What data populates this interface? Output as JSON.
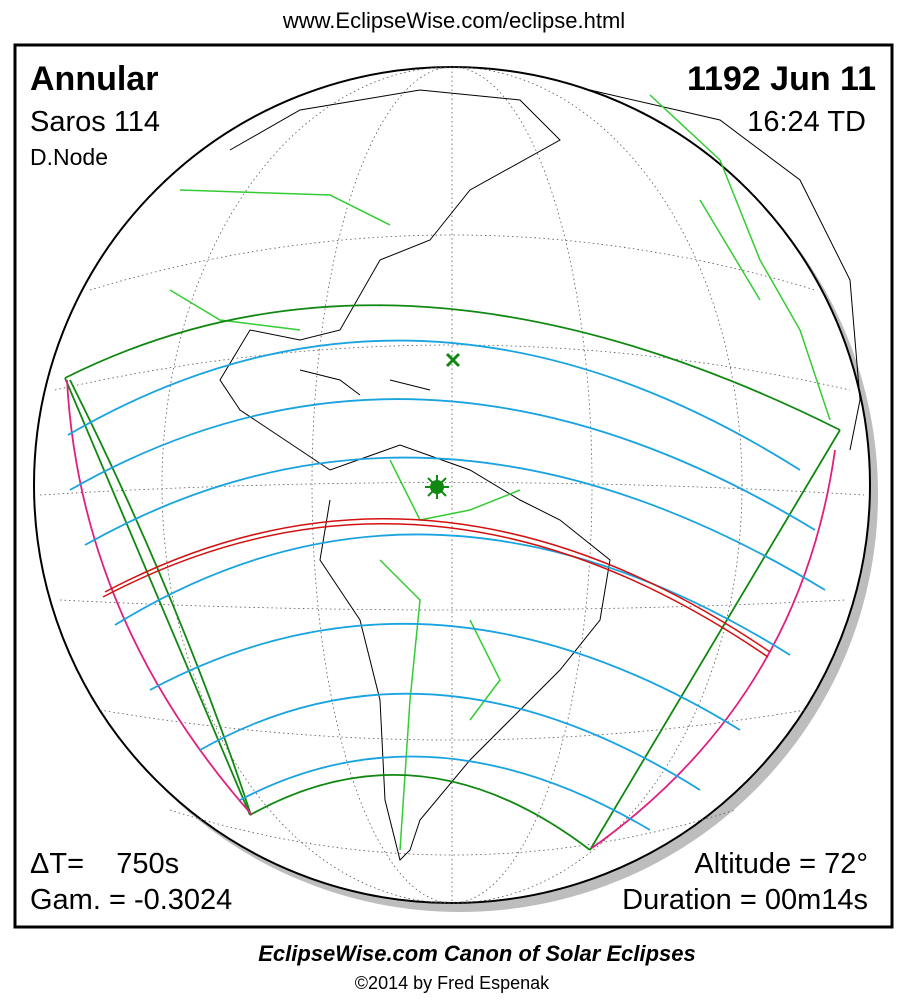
{
  "header": {
    "url": "www.EclipseWise.com/eclipse.html"
  },
  "panel": {
    "eclipse_type": "Annular",
    "saros": "Saros 114",
    "node": "D.Node",
    "date": "1192 Jun 11",
    "time": "16:24 TD",
    "delta_t": "ΔT=    750s",
    "gamma": "Gam. = -0.3024",
    "altitude": "Altitude = 72°",
    "duration": "Duration = 00m14s"
  },
  "footer": {
    "title": "EclipseWise.com Canon of Solar Eclipses",
    "credit": "©2014 by Fred Espenak"
  }
}
